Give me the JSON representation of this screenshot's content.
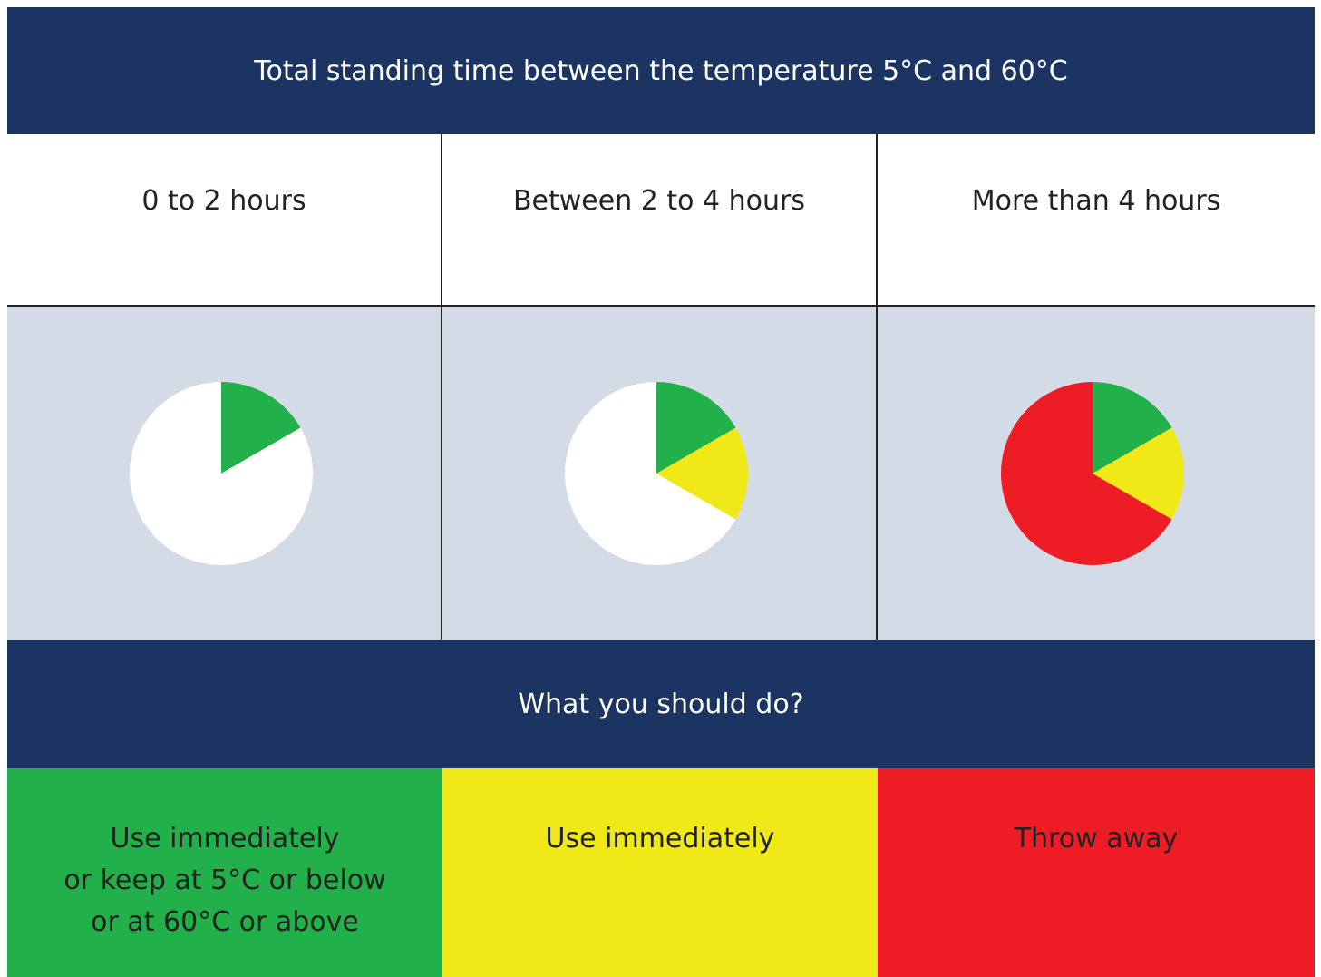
{
  "header": {
    "title": "Total standing time between the temperature 5°C and 60°C"
  },
  "columns": [
    {
      "label": "0 to 2 hours",
      "pie": [
        {
          "color": "#22b04b",
          "value": 2
        },
        {
          "color": "#ffffff",
          "value": 10
        }
      ],
      "action": {
        "color": "#22b04b",
        "lines": [
          "Use immediately",
          "or keep at 5°C or below",
          "or at 60°C or above"
        ]
      }
    },
    {
      "label": "Between 2 to 4 hours",
      "pie": [
        {
          "color": "#22b04b",
          "value": 2
        },
        {
          "color": "#f0e817",
          "value": 2
        },
        {
          "color": "#ffffff",
          "value": 8
        }
      ],
      "action": {
        "color": "#f0e817",
        "lines": [
          "Use immediately"
        ]
      }
    },
    {
      "label": "More than 4 hours",
      "pie": [
        {
          "color": "#22b04b",
          "value": 2
        },
        {
          "color": "#f0e817",
          "value": 2
        },
        {
          "color": "#ee1c24",
          "value": 8
        }
      ],
      "action": {
        "color": "#ee1c24",
        "lines": [
          "Throw away"
        ]
      }
    }
  ],
  "middle": {
    "title": "What you should do?"
  }
}
